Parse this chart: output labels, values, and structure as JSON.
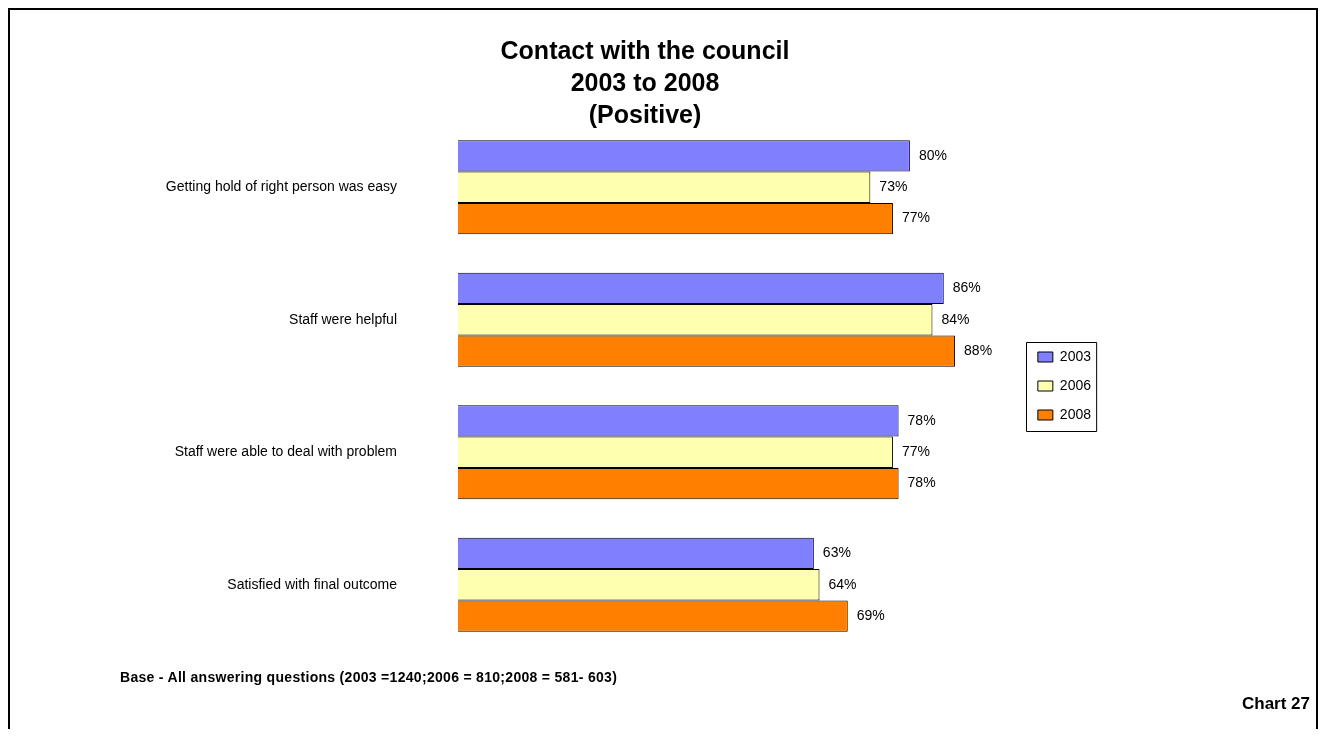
{
  "chart_data": {
    "type": "bar",
    "orientation": "horizontal",
    "title": "Contact with the council\n2003 to 2008\n(Positive)",
    "categories": [
      "Getting hold of right person was easy",
      "Staff were helpful",
      "Staff were able to deal with problem",
      "Satisfied with final outcome"
    ],
    "series": [
      {
        "name": "2003",
        "color": "#8080ff",
        "values": [
          80,
          86,
          78,
          63
        ],
        "value_labels": [
          "80%",
          "86%",
          "78%",
          "63%"
        ]
      },
      {
        "name": "2006",
        "color": "#ffffb0",
        "values": [
          73,
          84,
          77,
          64
        ],
        "value_labels": [
          "73%",
          "84%",
          "77%",
          "64%"
        ]
      },
      {
        "name": "2008",
        "color": "#ff8000",
        "values": [
          77,
          88,
          78,
          69
        ],
        "value_labels": [
          "77%",
          "88%",
          "78%",
          "69%"
        ]
      }
    ],
    "annotations": [
      "Base - All answering questions (2003 =1240;2006 = 810;2008 = 581- 603)",
      "Chart 27"
    ],
    "legend": "right",
    "grid": false,
    "tick_labels": "y"
  }
}
